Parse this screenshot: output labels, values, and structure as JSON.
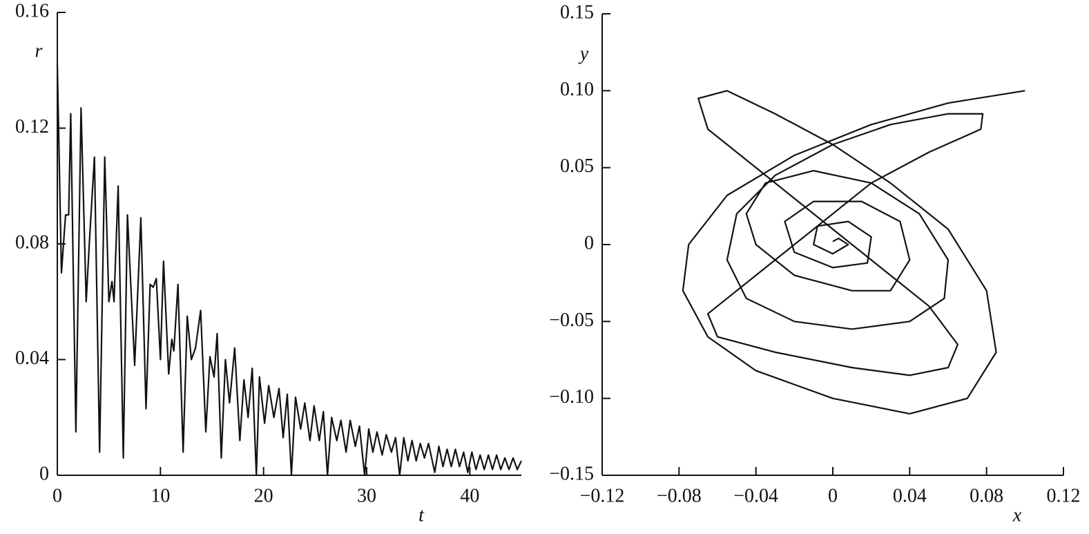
{
  "chart_data": [
    {
      "type": "line",
      "xlabel": "t",
      "ylabel": "r",
      "xlim": [
        0,
        45
      ],
      "xticks": [
        0,
        10,
        20,
        30,
        40
      ],
      "ylim": [
        0,
        0.16
      ],
      "yticks": [
        0,
        0.04,
        0.08,
        0.12,
        0.16
      ],
      "color": "#111111",
      "x": [
        0,
        0.4,
        0.8,
        1.1,
        1.3,
        1.8,
        2.3,
        2.8,
        3.1,
        3.6,
        4.1,
        4.6,
        5.0,
        5.3,
        5.5,
        5.9,
        6.4,
        6.8,
        7.5,
        8.1,
        8.6,
        9.0,
        9.3,
        9.6,
        10.0,
        10.3,
        10.8,
        11.1,
        11.3,
        11.7,
        12.2,
        12.6,
        13.0,
        13.4,
        13.9,
        14.4,
        14.8,
        15.2,
        15.5,
        15.9,
        16.3,
        16.7,
        17.2,
        17.7,
        18.1,
        18.5,
        18.9,
        19.3,
        19.6,
        20.1,
        20.5,
        21.0,
        21.5,
        21.9,
        22.3,
        22.7,
        23.1,
        23.6,
        24.0,
        24.5,
        24.9,
        25.4,
        25.8,
        26.2,
        26.6,
        27.1,
        27.5,
        28.0,
        28.4,
        28.9,
        29.3,
        29.8,
        30.2,
        30.6,
        31.0,
        31.5,
        31.9,
        32.4,
        32.8,
        33.2,
        33.6,
        34.0,
        34.4,
        34.8,
        35.2,
        35.6,
        36.0,
        36.6,
        37.0,
        37.4,
        37.8,
        38.2,
        38.6,
        39.0,
        39.4,
        39.8,
        40.2,
        40.6,
        41.0,
        41.4,
        41.8,
        42.2,
        42.6,
        43.0,
        43.4,
        43.8,
        44.2,
        44.6,
        45.0
      ],
      "values": [
        0.142,
        0.07,
        0.09,
        0.09,
        0.125,
        0.015,
        0.127,
        0.06,
        0.08,
        0.11,
        0.008,
        0.11,
        0.06,
        0.067,
        0.06,
        0.1,
        0.006,
        0.09,
        0.038,
        0.089,
        0.023,
        0.066,
        0.065,
        0.068,
        0.04,
        0.074,
        0.035,
        0.047,
        0.043,
        0.066,
        0.008,
        0.055,
        0.04,
        0.044,
        0.057,
        0.015,
        0.041,
        0.034,
        0.049,
        0.006,
        0.04,
        0.025,
        0.044,
        0.012,
        0.033,
        0.02,
        0.037,
        0,
        0.034,
        0.018,
        0.031,
        0.02,
        0.03,
        0.013,
        0.028,
        0,
        0.027,
        0.016,
        0.025,
        0.012,
        0.024,
        0.012,
        0.022,
        0,
        0.02,
        0.012,
        0.019,
        0.008,
        0.019,
        0.01,
        0.017,
        0,
        0.016,
        0.008,
        0.015,
        0.007,
        0.014,
        0.008,
        0.013,
        0,
        0.013,
        0.005,
        0.012,
        0.005,
        0.011,
        0.006,
        0.011,
        0.001,
        0.01,
        0.003,
        0.009,
        0.003,
        0.009,
        0.003,
        0.008,
        0.001,
        0.008,
        0.002,
        0.007,
        0.002,
        0.007,
        0.002,
        0.007,
        0.002,
        0.006,
        0.002,
        0.006,
        0.002,
        0.005
      ]
    },
    {
      "type": "line",
      "xlabel": "x",
      "ylabel": "y",
      "xlim": [
        -0.12,
        0.12
      ],
      "xticks": [
        {
          "value": -0.12,
          "label": "−0.12"
        },
        {
          "value": -0.08,
          "label": "−0.08"
        },
        {
          "value": -0.04,
          "label": "−0.04"
        },
        0,
        0.04,
        0.08,
        0.12
      ],
      "ylim": [
        -0.15,
        0.15
      ],
      "yticks": [
        {
          "value": -0.15,
          "label": "−0.15"
        },
        {
          "value": -0.1,
          "label": "−0.10"
        },
        {
          "value": -0.05,
          "label": "−0.05"
        },
        0,
        0.05,
        {
          "value": 0.1,
          "label": "0.10"
        },
        0.15
      ],
      "color": "#111111",
      "x": [
        0.1,
        0.06,
        0.02,
        -0.02,
        -0.055,
        -0.075,
        -0.078,
        -0.065,
        -0.04,
        0,
        0.04,
        0.07,
        0.085,
        0.08,
        0.06,
        0.03,
        0,
        -0.03,
        -0.055,
        -0.07,
        -0.065,
        -0.04,
        -0.01,
        0.02,
        0.05,
        0.065,
        0.06,
        0.04,
        0.01,
        -0.03,
        -0.06,
        -0.065,
        -0.04,
        -0.01,
        0.02,
        0.05,
        0.077,
        0.078,
        0.06,
        0.03,
        0,
        -0.03,
        -0.05,
        -0.055,
        -0.045,
        -0.02,
        0.01,
        0.04,
        0.058,
        0.06,
        0.045,
        0.02,
        -0.01,
        -0.035,
        -0.045,
        -0.04,
        -0.02,
        0.01,
        0.03,
        0.04,
        0.035,
        0.015,
        -0.01,
        -0.025,
        -0.02,
        0,
        0.018,
        0.02,
        0.008,
        -0.008,
        -0.01,
        0,
        0.008,
        0.003,
        0
      ],
      "values": [
        0.1,
        0.092,
        0.078,
        0.058,
        0.032,
        0,
        -0.03,
        -0.06,
        -0.082,
        -0.1,
        -0.11,
        -0.1,
        -0.07,
        -0.03,
        0.01,
        0.04,
        0.065,
        0.085,
        0.1,
        0.095,
        0.075,
        0.05,
        0.02,
        -0.01,
        -0.04,
        -0.065,
        -0.08,
        -0.085,
        -0.08,
        -0.07,
        -0.06,
        -0.045,
        -0.02,
        0.01,
        0.04,
        0.06,
        0.075,
        0.085,
        0.085,
        0.078,
        0.065,
        0.045,
        0.02,
        -0.01,
        -0.035,
        -0.05,
        -0.055,
        -0.05,
        -0.035,
        -0.01,
        0.02,
        0.04,
        0.048,
        0.04,
        0.02,
        0,
        -0.02,
        -0.03,
        -0.03,
        -0.01,
        0.015,
        0.028,
        0.028,
        0.015,
        -0.005,
        -0.015,
        -0.012,
        0.005,
        0.015,
        0.012,
        0,
        -0.006,
        0,
        0.004,
        0.002
      ]
    }
  ]
}
